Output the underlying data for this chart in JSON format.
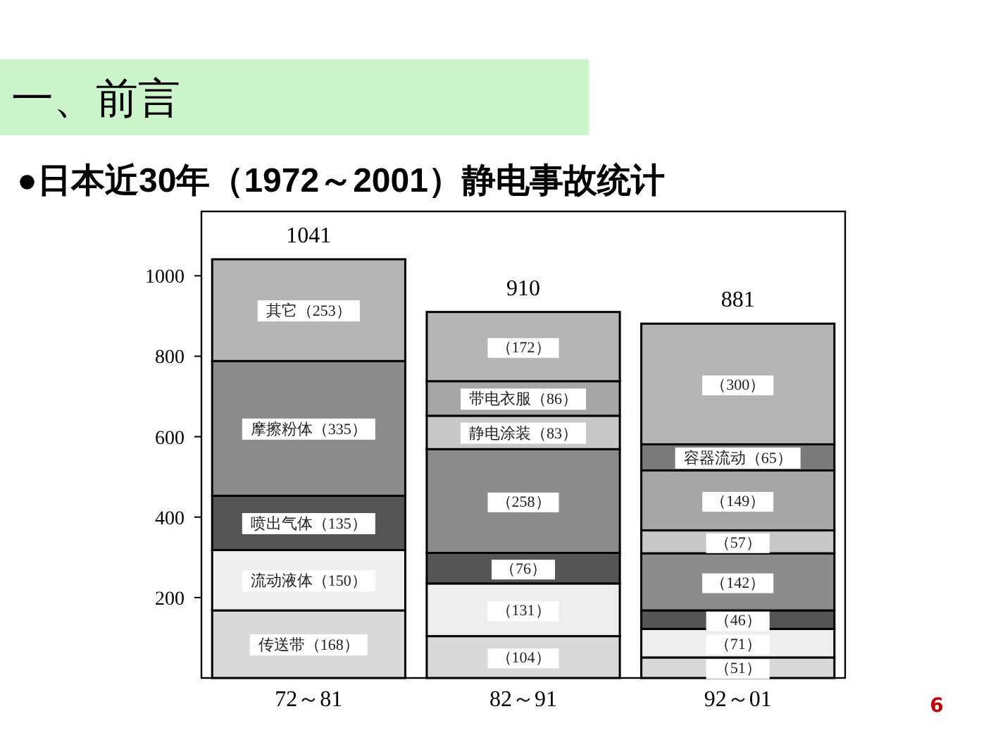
{
  "chart_data": {
    "type": "bar",
    "title": "一、前言",
    "subtitle": "●日本近30年（1972～2001）静电事故统计",
    "categories": [
      "72～81",
      "82～91",
      "92～01"
    ],
    "stacked": true,
    "ylim": [
      0,
      1160
    ],
    "yticks": [
      200,
      400,
      600,
      800,
      1000
    ],
    "grid": false,
    "series": [
      {
        "color": "#d9d9d9",
        "values": [
          168,
          104,
          51
        ],
        "value_labels": [
          "传送带（168）",
          "（104）",
          "（51）"
        ]
      },
      {
        "color": "#eeeeee",
        "values": [
          150,
          131,
          71
        ],
        "value_labels": [
          "流动液体（150）",
          "（131）",
          "（71）"
        ]
      },
      {
        "color": "#555555",
        "values": [
          135,
          76,
          46
        ],
        "value_labels": [
          "喷出气体（135）",
          "（76）",
          "（46）"
        ]
      },
      {
        "color": "#8c8c8c",
        "values": [
          335,
          258,
          142
        ],
        "value_labels": [
          "摩擦粉体（335）",
          "（258）",
          "（142）"
        ]
      },
      {
        "color": "#c8c8c8",
        "values": [
          null,
          83,
          57
        ],
        "value_labels": [
          null,
          "静电涂装（83）",
          "（57）"
        ]
      },
      {
        "color": "#a6a6a6",
        "values": [
          null,
          86,
          149
        ],
        "value_labels": [
          null,
          "带电衣服（86）",
          "（149）"
        ]
      },
      {
        "color": "#7a7a7a",
        "values": [
          null,
          null,
          65
        ],
        "value_labels": [
          null,
          null,
          "容器流动（65）"
        ]
      },
      {
        "color": "#b5b5b5",
        "values": [
          253,
          172,
          300
        ],
        "value_labels": [
          "其它（253）",
          "（172）",
          "（300）"
        ]
      }
    ],
    "totals": [
      "1041",
      "910",
      "881"
    ],
    "annotations": [
      "6"
    ]
  }
}
